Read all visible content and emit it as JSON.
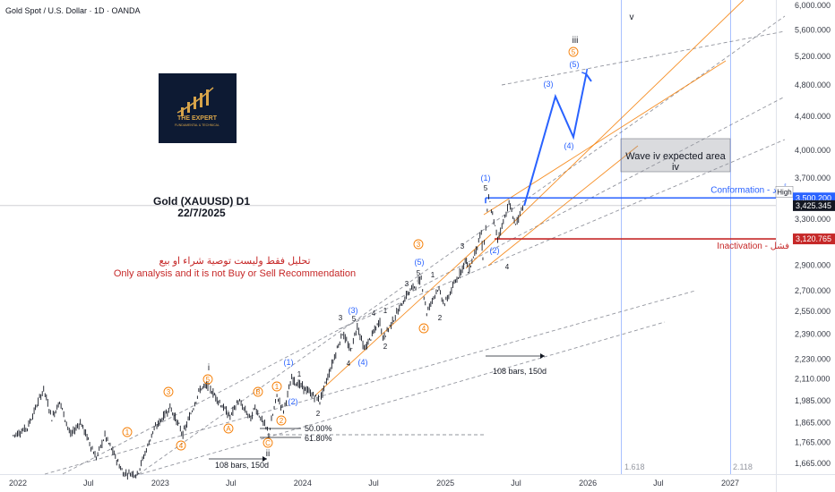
{
  "header": {
    "symbol_line": "Gold Spot / U.S. Dollar · 1D · OANDA"
  },
  "logo": {
    "text": "THE EXPERT",
    "subtext": "FUNDAMENTAL & TECHNICAL"
  },
  "chart_title": {
    "line1": "Gold (XAUUSD) D1",
    "line2": "22/7/2025"
  },
  "disclaimer": {
    "arabic": "تحليل فقط وليست توصية شراء او بيع",
    "english": "Only analysis and it is not Buy or Sell Recommendation"
  },
  "annotations": {
    "wave_iv_area": "Wave iv expected area",
    "iv": "iv",
    "conformation": "Conformation - تأكيد",
    "inactivation": "Inactivation - فشل",
    "bars_top": "108 bars, 150d",
    "bars_bottom": "108 bars, 150d",
    "fib_50": "50.00%",
    "fib_618": "61.80%",
    "fib_1618": "1.618",
    "fib_2118": "2.118"
  },
  "price_tags": {
    "high_label": "High",
    "high_value": "3,500.200",
    "current": "3,425.345",
    "invalid": "3,120.765"
  },
  "colors": {
    "blue": "#2962ff",
    "red": "#c62828",
    "orange": "#f57c00",
    "dark": "#131722",
    "grid_gray": "#787b86"
  },
  "chart_data": {
    "type": "line",
    "title": "",
    "y_axis": {
      "scale": "log",
      "ticks": [
        "6,000.000",
        "5,600.000",
        "5,200.000",
        "4,800.000",
        "4,400.000",
        "4,000.000",
        "3,700.000",
        "3,500.200",
        "3,425.345",
        "3,300.000",
        "3,120.765",
        "2,900.000",
        "2,700.000",
        "2,550.000",
        "2,390.000",
        "2,230.000",
        "2,110.000",
        "1,985.000",
        "1,865.000",
        "1,765.000",
        "1,665.000"
      ],
      "tick_values": [
        6000,
        5600,
        5200,
        4800,
        4400,
        4000,
        3700,
        3500.2,
        3425.345,
        3300,
        3120.765,
        2900,
        2700,
        2550,
        2390,
        2230,
        2110,
        1985,
        1865,
        1765,
        1665
      ]
    },
    "x_axis": {
      "ticks": [
        "2022",
        "Jul",
        "2023",
        "Jul",
        "2024",
        "Jul",
        "2025",
        "Jul",
        "2026",
        "Jul",
        "2027"
      ]
    },
    "levels": {
      "conformation": 3500.2,
      "inactivation": 3120.765,
      "current": 3425.345
    },
    "price_path": [
      {
        "d": "2021-12-20",
        "p": 1800
      },
      {
        "d": "2022-01-25",
        "p": 1840
      },
      {
        "d": "2022-03-08",
        "p": 2050
      },
      {
        "d": "2022-03-29",
        "p": 1890
      },
      {
        "d": "2022-04-18",
        "p": 1980
      },
      {
        "d": "2022-05-16",
        "p": 1800
      },
      {
        "d": "2022-06-10",
        "p": 1870
      },
      {
        "d": "2022-07-21",
        "p": 1690
      },
      {
        "d": "2022-08-12",
        "p": 1800
      },
      {
        "d": "2022-09-28",
        "p": 1620
      },
      {
        "d": "2022-10-20",
        "p": 1620
      },
      {
        "d": "2022-11-03",
        "p": 1615
      },
      {
        "d": "2022-12-13",
        "p": 1820
      },
      {
        "d": "2023-01-26",
        "p": 1950
      },
      {
        "d": "2023-02-28",
        "p": 1805
      },
      {
        "d": "2023-04-13",
        "p": 2050
      },
      {
        "d": "2023-05-03",
        "p": 2070
      },
      {
        "d": "2023-06-29",
        "p": 1895
      },
      {
        "d": "2023-07-20",
        "p": 1985
      },
      {
        "d": "2023-08-21",
        "p": 1885
      },
      {
        "d": "2023-09-01",
        "p": 1950
      },
      {
        "d": "2023-10-06",
        "p": 1810
      },
      {
        "d": "2023-10-27",
        "p": 2010
      },
      {
        "d": "2023-11-13",
        "p": 1930
      },
      {
        "d": "2023-12-04",
        "p": 2110
      },
      {
        "d": "2024-02-14",
        "p": 1985
      },
      {
        "d": "2024-04-12",
        "p": 2400
      },
      {
        "d": "2024-05-03",
        "p": 2280
      },
      {
        "d": "2024-05-20",
        "p": 2450
      },
      {
        "d": "2024-06-07",
        "p": 2290
      },
      {
        "d": "2024-07-17",
        "p": 2480
      },
      {
        "d": "2024-07-25",
        "p": 2360
      },
      {
        "d": "2024-09-26",
        "p": 2680
      },
      {
        "d": "2024-10-31",
        "p": 2790
      },
      {
        "d": "2024-11-14",
        "p": 2540
      },
      {
        "d": "2024-12-12",
        "p": 2720
      },
      {
        "d": "2024-12-30",
        "p": 2600
      },
      {
        "d": "2025-02-24",
        "p": 2950
      },
      {
        "d": "2025-02-28",
        "p": 2840
      },
      {
        "d": "2025-04-03",
        "p": 3170
      },
      {
        "d": "2025-04-07",
        "p": 2960
      },
      {
        "d": "2025-04-22",
        "p": 3500
      },
      {
        "d": "2025-05-15",
        "p": 3120
      },
      {
        "d": "2025-06-13",
        "p": 3450
      },
      {
        "d": "2025-06-30",
        "p": 3250
      },
      {
        "d": "2025-07-22",
        "p": 3425
      }
    ],
    "projection": [
      {
        "d": "2025-07-22",
        "p": 3425
      },
      {
        "d": "2025-10-10",
        "p": 4650
      },
      {
        "d": "2025-11-25",
        "p": 4150
      },
      {
        "d": "2025-12-28",
        "p": 4950
      },
      {
        "d": "2026-01-10",
        "p": 4850
      }
    ],
    "wave_labels": {
      "iii_top": "iii",
      "v_top": "v",
      "i_mark": "i",
      "ii_mark": "ii",
      "circle_5_top": "5",
      "paren_5_top": "(5)",
      "paren_3_proj": "(3)",
      "paren_4_proj": "(4)",
      "paren_1_high": "(1)",
      "num_5_high": "5",
      "paren_2_low": "(2)",
      "n3_a": "3",
      "n4_a": "4",
      "circle_3_mid": "3",
      "paren_5_mid": "(5)",
      "n5_mid": "5",
      "n3_mid": "3",
      "n1_mid": "1",
      "n2_mid": "2",
      "circle_4_mid": "4",
      "paren_3_left": "(3)",
      "n3_left": "3",
      "n5_left": "5",
      "n1_left": "1",
      "n4_left": "4",
      "n2_left": "2",
      "paren_4_left": "(4)",
      "paren_1_b": "(1)",
      "n1_b": "1",
      "paren_2_b": "(2)",
      "n2_b": "2",
      "circle_1_b": "1",
      "circle_2_b": "2",
      "circle_3_a": "3",
      "circle_5_a": "5",
      "circle_4_a": "4",
      "circle_b": "B",
      "circle_a": "A",
      "circle_c": "C",
      "circle_1_a": "1"
    }
  }
}
